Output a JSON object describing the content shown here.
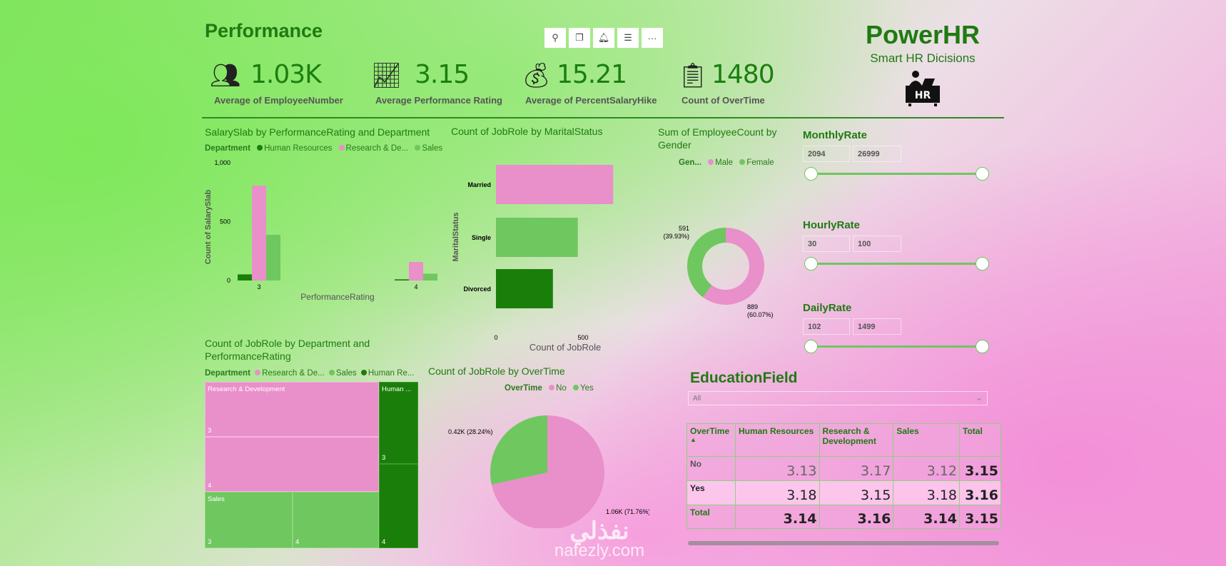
{
  "header": {
    "title": "Performance",
    "toolbar": [
      "pin-icon",
      "copy-icon",
      "bell-icon",
      "filter-icon",
      "more-icon"
    ],
    "toolbar_glyphs": [
      "⚲",
      "❐",
      "🔔︎",
      "☰",
      "···"
    ]
  },
  "kpis": [
    {
      "icon": "people-icon",
      "value": "1.03K",
      "label": "Average of EmployeeNumber"
    },
    {
      "icon": "growth-chart-icon",
      "value": "3.15",
      "label": "Average Performance Rating"
    },
    {
      "icon": "money-bag-icon",
      "value": "15.21",
      "label": "Average of PercentSalaryHike"
    },
    {
      "icon": "report-icon",
      "value": "1480",
      "label": "Count of OverTime"
    }
  ],
  "brand": {
    "name": "PowerHR",
    "tagline": "Smart HR Dicisions",
    "icon_text": "HR"
  },
  "colors": {
    "pink": "#e98fca",
    "light_green": "#6fc75f",
    "dark_green": "#1a7f0a",
    "title_green": "#1f7a12"
  },
  "chart_data": [
    {
      "type": "bar",
      "title": "SalarySlab by PerformanceRating and Department",
      "legend_title": "Department",
      "legend": [
        "Human Resources",
        "Research & De...",
        "Sales"
      ],
      "categories": [
        "3",
        "4"
      ],
      "series": [
        {
          "name": "Human Resources",
          "values": [
            52,
            10
          ]
        },
        {
          "name": "Research & Development",
          "values": [
            805,
            157
          ]
        },
        {
          "name": "Sales",
          "values": [
            388,
            58
          ]
        }
      ],
      "xlabel": "PerformanceRating",
      "ylabel": "Count of SalarySlab",
      "ylim": [
        0,
        1000
      ],
      "yticks": [
        "0",
        "500",
        "1,000"
      ]
    },
    {
      "type": "bar",
      "orientation": "horizontal",
      "title": "Count of JobRole by MaritalStatus",
      "categories": [
        "Married",
        "Single",
        "Divorced"
      ],
      "values": [
        673,
        470,
        327
      ],
      "xlabel": "Count of JobRole",
      "ylabel": "MaritalStatus",
      "xticks": [
        "0",
        "500"
      ]
    },
    {
      "type": "pie",
      "donut": true,
      "title": "Sum of EmployeeCount by Gender",
      "legend_title": "Gen...",
      "categories": [
        "Male",
        "Female"
      ],
      "values": [
        889,
        591
      ],
      "labels": [
        {
          "value": "889",
          "pct": "(60.07%)"
        },
        {
          "value": "591",
          "pct": "(39.93%)"
        }
      ]
    },
    {
      "type": "treemap",
      "title": "Count of JobRole by Department and PerformanceRating",
      "legend_title": "Department",
      "legend": [
        "Research & De...",
        "Sales",
        "Human Re..."
      ],
      "groups": [
        {
          "name": "Research & Development",
          "label": "Research & Development",
          "children": [
            {
              "name": "3"
            },
            {
              "name": "4"
            }
          ]
        },
        {
          "name": "Sales",
          "label": "Sales",
          "children": [
            {
              "name": "3"
            },
            {
              "name": "4"
            }
          ]
        },
        {
          "name": "Human Resources",
          "label": "Human ...",
          "children": [
            {
              "name": "3"
            },
            {
              "name": "4"
            }
          ]
        }
      ]
    },
    {
      "type": "pie",
      "title": "Count of JobRole by OverTime",
      "legend_title": "OverTime",
      "categories": [
        "No",
        "Yes"
      ],
      "values": [
        1060,
        420
      ],
      "labels": [
        "1.06K (71.76%)",
        "0.42K (28.24%)"
      ]
    }
  ],
  "slicers": [
    {
      "title": "MonthlyRate",
      "min": "2094",
      "max": "26999"
    },
    {
      "title": "HourlyRate",
      "min": "30",
      "max": "100"
    },
    {
      "title": "DailyRate",
      "min": "102",
      "max": "1499"
    }
  ],
  "education": {
    "title": "EducationField",
    "value": "All"
  },
  "matrix": {
    "headers": [
      "OverTime",
      "Human Resources",
      "Research & Development",
      "Sales",
      "Total"
    ],
    "rows": [
      {
        "label": "No",
        "values": [
          "3.13",
          "3.17",
          "3.12",
          "3.15"
        ]
      },
      {
        "label": "Yes",
        "values": [
          "3.18",
          "3.15",
          "3.18",
          "3.16"
        ]
      },
      {
        "label": "Total",
        "values": [
          "3.14",
          "3.16",
          "3.14",
          "3.15"
        ]
      }
    ]
  },
  "watermark": {
    "arabic": "نفذلي",
    "latin": "nafezly.com"
  }
}
